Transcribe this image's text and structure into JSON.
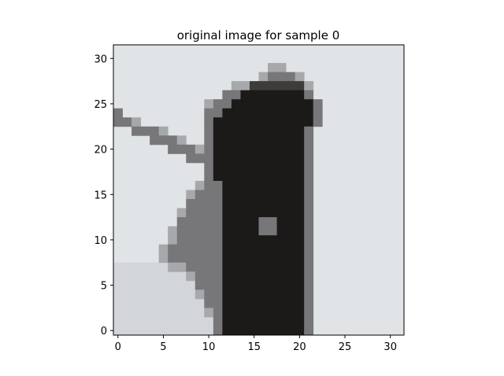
{
  "chart_data": {
    "type": "heatmap",
    "title": "original image for sample 0",
    "xlabel": "",
    "ylabel": "",
    "grid": false,
    "grayscale_image": true,
    "xlim": [
      -0.5,
      31.5
    ],
    "ylim": [
      31.5,
      -0.5
    ],
    "x_ticks": [
      0,
      5,
      10,
      15,
      20,
      25,
      30
    ],
    "y_ticks": [
      0,
      5,
      10,
      15,
      20,
      25,
      30
    ],
    "x_tick_labels": [
      "0",
      "5",
      "10",
      "15",
      "20",
      "25",
      "30"
    ],
    "y_tick_labels": [
      "0",
      "5",
      "10",
      "15",
      "20",
      "25",
      "30"
    ],
    "image_shape": [
      32,
      32
    ],
    "background_color": "#e0e4e6",
    "shadow_color": "#c8ccd0",
    "shade_colors": {
      "dark": "#1c1a18",
      "medium": "#3e3c38",
      "grey": "#77777a",
      "light_grey": "#a7a8ab"
    },
    "shades": {
      "description": "row index 0-31, each entry [col_start, col_end, shade]",
      "rows": [
        [],
        [],
        [
          [
            17,
            19,
            "light_grey"
          ]
        ],
        [
          [
            16,
            17,
            "light_grey"
          ],
          [
            17,
            20,
            "grey"
          ],
          [
            20,
            21,
            "light_grey"
          ]
        ],
        [
          [
            13,
            15,
            "light_grey"
          ],
          [
            15,
            21,
            "medium"
          ],
          [
            21,
            22,
            "light_grey"
          ]
        ],
        [
          [
            12,
            14,
            "grey"
          ],
          [
            14,
            21,
            "dark"
          ],
          [
            21,
            22,
            "grey"
          ]
        ],
        [
          [
            10,
            11,
            "light_grey"
          ],
          [
            11,
            13,
            "grey"
          ],
          [
            13,
            22,
            "dark"
          ],
          [
            22,
            23,
            "grey"
          ]
        ],
        [
          [
            0,
            1,
            "grey"
          ],
          [
            10,
            12,
            "grey"
          ],
          [
            12,
            22,
            "dark"
          ],
          [
            22,
            23,
            "grey"
          ]
        ],
        [
          [
            0,
            2,
            "grey"
          ],
          [
            2,
            3,
            "light_grey"
          ],
          [
            10,
            11,
            "grey"
          ],
          [
            11,
            22,
            "dark"
          ],
          [
            22,
            23,
            "grey"
          ]
        ],
        [
          [
            2,
            5,
            "grey"
          ],
          [
            5,
            6,
            "light_grey"
          ],
          [
            10,
            11,
            "grey"
          ],
          [
            11,
            21,
            "dark"
          ],
          [
            21,
            22,
            "grey"
          ]
        ],
        [
          [
            4,
            7,
            "grey"
          ],
          [
            7,
            8,
            "light_grey"
          ],
          [
            10,
            11,
            "grey"
          ],
          [
            11,
            21,
            "dark"
          ],
          [
            21,
            22,
            "grey"
          ]
        ],
        [
          [
            6,
            9,
            "grey"
          ],
          [
            9,
            10,
            "light_grey"
          ],
          [
            10,
            11,
            "grey"
          ],
          [
            11,
            21,
            "dark"
          ],
          [
            21,
            22,
            "grey"
          ]
        ],
        [
          [
            8,
            11,
            "grey"
          ],
          [
            11,
            21,
            "dark"
          ],
          [
            21,
            22,
            "grey"
          ]
        ],
        [
          [
            10,
            11,
            "grey"
          ],
          [
            11,
            21,
            "dark"
          ],
          [
            21,
            22,
            "grey"
          ]
        ],
        [
          [
            10,
            11,
            "grey"
          ],
          [
            11,
            21,
            "dark"
          ],
          [
            21,
            22,
            "grey"
          ]
        ],
        [
          [
            9,
            10,
            "light_grey"
          ],
          [
            10,
            12,
            "grey"
          ],
          [
            12,
            21,
            "dark"
          ],
          [
            21,
            22,
            "grey"
          ]
        ],
        [
          [
            8,
            9,
            "light_grey"
          ],
          [
            9,
            12,
            "grey"
          ],
          [
            12,
            21,
            "dark"
          ],
          [
            21,
            22,
            "grey"
          ]
        ],
        [
          [
            8,
            12,
            "grey"
          ],
          [
            12,
            21,
            "dark"
          ],
          [
            21,
            22,
            "grey"
          ]
        ],
        [
          [
            7,
            8,
            "light_grey"
          ],
          [
            8,
            12,
            "grey"
          ],
          [
            12,
            21,
            "dark"
          ],
          [
            21,
            22,
            "grey"
          ]
        ],
        [
          [
            7,
            12,
            "grey"
          ],
          [
            12,
            16,
            "dark"
          ],
          [
            16,
            18,
            "grey"
          ],
          [
            18,
            21,
            "dark"
          ],
          [
            21,
            22,
            "grey"
          ]
        ],
        [
          [
            6,
            7,
            "light_grey"
          ],
          [
            7,
            12,
            "grey"
          ],
          [
            12,
            16,
            "dark"
          ],
          [
            16,
            18,
            "grey"
          ],
          [
            18,
            21,
            "dark"
          ],
          [
            21,
            22,
            "grey"
          ]
        ],
        [
          [
            6,
            7,
            "light_grey"
          ],
          [
            7,
            12,
            "grey"
          ],
          [
            12,
            21,
            "dark"
          ],
          [
            21,
            22,
            "grey"
          ]
        ],
        [
          [
            5,
            6,
            "light_grey"
          ],
          [
            6,
            12,
            "grey"
          ],
          [
            12,
            21,
            "dark"
          ],
          [
            21,
            22,
            "grey"
          ]
        ],
        [
          [
            5,
            6,
            "light_grey"
          ],
          [
            6,
            12,
            "grey"
          ],
          [
            12,
            21,
            "dark"
          ],
          [
            21,
            22,
            "grey"
          ]
        ],
        [
          [
            6,
            8,
            "light_grey"
          ],
          [
            8,
            12,
            "grey"
          ],
          [
            12,
            21,
            "dark"
          ],
          [
            21,
            22,
            "grey"
          ]
        ],
        [
          [
            8,
            9,
            "light_grey"
          ],
          [
            9,
            12,
            "grey"
          ],
          [
            12,
            21,
            "dark"
          ],
          [
            21,
            22,
            "grey"
          ]
        ],
        [
          [
            9,
            12,
            "grey"
          ],
          [
            12,
            21,
            "dark"
          ],
          [
            21,
            22,
            "grey"
          ]
        ],
        [
          [
            9,
            10,
            "light_grey"
          ],
          [
            10,
            12,
            "grey"
          ],
          [
            12,
            21,
            "dark"
          ],
          [
            21,
            22,
            "grey"
          ]
        ],
        [
          [
            10,
            12,
            "grey"
          ],
          [
            12,
            21,
            "dark"
          ],
          [
            21,
            22,
            "grey"
          ]
        ],
        [
          [
            10,
            11,
            "light_grey"
          ],
          [
            11,
            12,
            "grey"
          ],
          [
            12,
            21,
            "dark"
          ],
          [
            21,
            22,
            "grey"
          ]
        ],
        [
          [
            11,
            12,
            "grey"
          ],
          [
            12,
            21,
            "dark"
          ],
          [
            21,
            22,
            "grey"
          ]
        ],
        [
          [
            11,
            12,
            "grey"
          ],
          [
            12,
            21,
            "dark"
          ],
          [
            21,
            22,
            "grey"
          ]
        ]
      ]
    }
  }
}
